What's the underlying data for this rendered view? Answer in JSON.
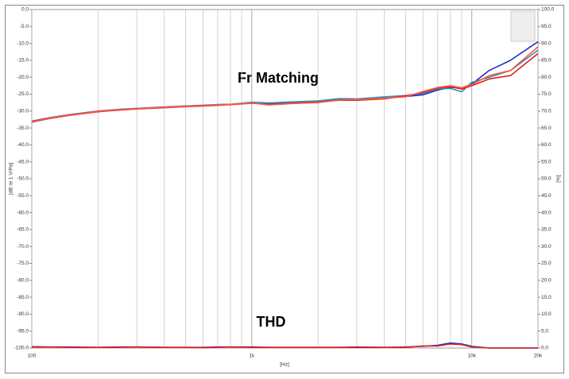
{
  "chart_data": {
    "type": "line",
    "annotations": [
      "Fr Matching",
      "THD"
    ],
    "xlabel": "[Hz]",
    "ylabel": "[dB re 1 V/Pa]",
    "y2label": "[%]",
    "xscale": "log",
    "grid": true,
    "x": [
      100,
      120,
      150,
      200,
      250,
      300,
      400,
      500,
      600,
      700,
      800,
      1000,
      1200,
      1500,
      2000,
      2500,
      3000,
      4000,
      5000,
      6000,
      7000,
      8000,
      9000,
      10000,
      12000,
      15000,
      20000
    ],
    "xlim": [
      100,
      20000
    ],
    "xticks": [
      {
        "value": 100,
        "label": "100"
      },
      {
        "value": 1000,
        "label": "1k"
      },
      {
        "value": 10000,
        "label": "10k"
      },
      {
        "value": 20000,
        "label": "20k"
      }
    ],
    "xminorticks": [
      200,
      300,
      400,
      500,
      600,
      700,
      800,
      900,
      2000,
      3000,
      4000,
      5000,
      6000,
      7000,
      8000,
      9000
    ],
    "ylim": [
      -100,
      0
    ],
    "yticks": [
      {
        "value": 0,
        "label": "0.0"
      },
      {
        "value": -5,
        "label": "-5.0"
      },
      {
        "value": -10,
        "label": "-10.0"
      },
      {
        "value": -15,
        "label": "-15.0"
      },
      {
        "value": -20,
        "label": "-20.0"
      },
      {
        "value": -25,
        "label": "-25.0"
      },
      {
        "value": -30,
        "label": "-30.0"
      },
      {
        "value": -35,
        "label": "-35.0"
      },
      {
        "value": -40,
        "label": "-40.0"
      },
      {
        "value": -45,
        "label": "-45.0"
      },
      {
        "value": -50,
        "label": "-50.0"
      },
      {
        "value": -55,
        "label": "-55.0"
      },
      {
        "value": -60,
        "label": "-60.0"
      },
      {
        "value": -65,
        "label": "-65.0"
      },
      {
        "value": -70,
        "label": "-70.0"
      },
      {
        "value": -75,
        "label": "-75.0"
      },
      {
        "value": -80,
        "label": "-80.0"
      },
      {
        "value": -85,
        "label": "-85.0"
      },
      {
        "value": -90,
        "label": "-90.0"
      },
      {
        "value": -95,
        "label": "-95.0"
      },
      {
        "value": -100,
        "label": "-100.0"
      }
    ],
    "y2lim": [
      0,
      100
    ],
    "y2ticks": [
      {
        "value": 100,
        "label": "100.0"
      },
      {
        "value": 95,
        "label": "95.0"
      },
      {
        "value": 90,
        "label": "90.0"
      },
      {
        "value": 85,
        "label": "85.0"
      },
      {
        "value": 80,
        "label": "80.0"
      },
      {
        "value": 75,
        "label": "75.0"
      },
      {
        "value": 70,
        "label": "70.0"
      },
      {
        "value": 65,
        "label": "65.0"
      },
      {
        "value": 60,
        "label": "60.0"
      },
      {
        "value": 55,
        "label": "55.0"
      },
      {
        "value": 50,
        "label": "50.0"
      },
      {
        "value": 45,
        "label": "45.0"
      },
      {
        "value": 40,
        "label": "40.0"
      },
      {
        "value": 35,
        "label": "35.0"
      },
      {
        "value": 30,
        "label": "30.0"
      },
      {
        "value": 25,
        "label": "25.0"
      },
      {
        "value": 20,
        "label": "20.0"
      },
      {
        "value": 15,
        "label": "15.0"
      },
      {
        "value": 10,
        "label": "10.0"
      },
      {
        "value": 5,
        "label": "5.0"
      },
      {
        "value": 0,
        "label": "0.0"
      }
    ],
    "series": [
      {
        "color": "#1a2fc8",
        "values": [
          -33,
          -32,
          -31,
          -30,
          -29.5,
          -29.2,
          -28.8,
          -28.5,
          -28.3,
          -28.1,
          -28,
          -27.5,
          -27.8,
          -27.5,
          -27.2,
          -26.5,
          -26.6,
          -26.2,
          -25.7,
          -25.2,
          -23.8,
          -23,
          -23.2,
          -22,
          -18,
          -15,
          -9.5
        ]
      },
      {
        "color": "#2a8fbf",
        "values": [
          -33.1,
          -32.1,
          -31,
          -30.1,
          -29.6,
          -29.2,
          -28.9,
          -28.5,
          -28.4,
          -28.1,
          -28,
          -27.4,
          -27.6,
          -27.3,
          -27,
          -26.3,
          -26.4,
          -25.8,
          -25.4,
          -24.8,
          -23.5,
          -23.3,
          -24.3,
          -21.5,
          -20,
          -18,
          -12
        ]
      },
      {
        "color": "#e02020",
        "values": [
          -33.3,
          -32.2,
          -31.2,
          -30.2,
          -29.7,
          -29.4,
          -29,
          -28.7,
          -28.5,
          -28.3,
          -28.1,
          -27.7,
          -28,
          -27.7,
          -27.3,
          -26.8,
          -26.8,
          -26.4,
          -25.5,
          -24.5,
          -23.2,
          -22.8,
          -23.5,
          -22.5,
          -20.5,
          -19.5,
          -13
        ]
      },
      {
        "color": "#ff5a3a",
        "values": [
          -33.2,
          -32.1,
          -31.1,
          -30.1,
          -29.6,
          -29.3,
          -28.9,
          -28.6,
          -28.4,
          -28.2,
          -28,
          -27.6,
          -28.2,
          -27.8,
          -27.5,
          -26.7,
          -26.6,
          -26.2,
          -25.8,
          -24.2,
          -23,
          -22.5,
          -23.1,
          -22.2,
          -19.5,
          -18,
          -11
        ]
      },
      {
        "color": "#1a2fc8",
        "axis": "y2",
        "values": [
          0.4,
          0.3,
          0.3,
          0.2,
          0.3,
          0.3,
          0.2,
          0.2,
          0.2,
          0.3,
          0.3,
          0.3,
          0.2,
          0.2,
          0.2,
          0.2,
          0.2,
          0.2,
          0.3,
          0.5,
          0.8,
          1.5,
          1.2,
          0.5,
          0,
          0,
          0
        ]
      },
      {
        "color": "#e02020",
        "axis": "y2",
        "values": [
          0.3,
          0.3,
          0.2,
          0.2,
          0.2,
          0.3,
          0.2,
          0.2,
          0.1,
          0.2,
          0.3,
          0.2,
          0.2,
          0.2,
          0.2,
          0.2,
          0.3,
          0.2,
          0.2,
          0.6,
          0.6,
          1.2,
          1,
          0.3,
          0,
          0,
          0
        ]
      }
    ]
  }
}
